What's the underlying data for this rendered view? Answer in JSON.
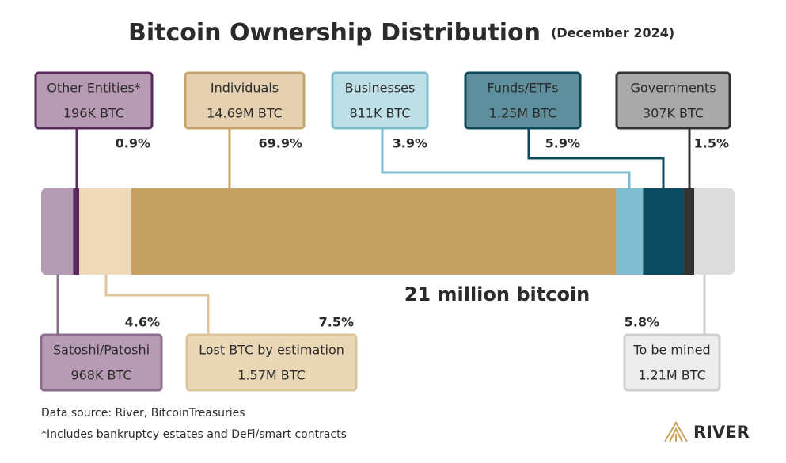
{
  "chart_data": {
    "type": "stacked-bar",
    "title": "Bitcoin Ownership Distribution",
    "subtitle": "(December 2024)",
    "bar_label": "21 million bitcoin",
    "categories": [
      "Satoshi/Patoshi",
      "Other Entities*",
      "Lost BTC by estimation",
      "Individuals",
      "Businesses",
      "Funds/ETFs",
      "Governments",
      "To be mined"
    ],
    "values": [
      4.6,
      0.9,
      7.5,
      69.9,
      3.9,
      5.9,
      1.5,
      5.8
    ],
    "value_labels": [
      "4.6%",
      "0.9%",
      "7.5%",
      "69.9%",
      "3.9%",
      "5.9%",
      "1.5%",
      "5.8%"
    ],
    "amount_labels": [
      "968K BTC",
      "196K BTC",
      "1.57M BTC",
      "14.69M BTC",
      "811K BTC",
      "1.25M BTC",
      "307K BTC",
      "1.21M BTC"
    ],
    "colors": [
      "#b39bb3",
      "#5a2a5e",
      "#eed9bb",
      "#c4a063",
      "#7fbdcf",
      "#0b4a5f",
      "#333333",
      "#dcdcdc"
    ],
    "notes": [
      "Data source: River, BitcoinTreasuries",
      "*Includes bankruptcy estates and DeFi/smart contracts"
    ],
    "brand": "RIVER"
  }
}
